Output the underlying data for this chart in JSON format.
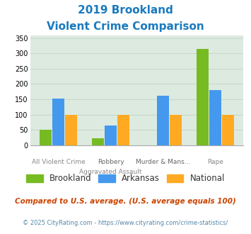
{
  "title_line1": "2019 Brookland",
  "title_line2": "Violent Crime Comparison",
  "title_color": "#1a7abf",
  "cat_labels_top": [
    "",
    "Robbery",
    "Murder & Mans...",
    ""
  ],
  "cat_labels_bot": [
    "All Violent Crime",
    "Aggravated Assault",
    "",
    "Rape"
  ],
  "brookland": [
    50,
    22,
    0,
    315
  ],
  "arkansas": [
    153,
    65,
    162,
    180
  ],
  "national": [
    100,
    100,
    100,
    100
  ],
  "bar_colors": {
    "brookland": "#77bb22",
    "arkansas": "#4499ee",
    "national": "#ffaa22"
  },
  "ylim": [
    0,
    360
  ],
  "yticks": [
    0,
    50,
    100,
    150,
    200,
    250,
    300,
    350
  ],
  "grid_color": "#c8d8c8",
  "plot_bg": "#ddeae0",
  "footnote1": "Compared to U.S. average. (U.S. average equals 100)",
  "footnote2": "© 2025 CityRating.com - https://www.cityrating.com/crime-statistics/",
  "footnote1_color": "#cc4400",
  "footnote2_color": "#5588aa",
  "legend_labels": [
    "Brookland",
    "Arkansas",
    "National"
  ],
  "legend_text_color": "#333333"
}
